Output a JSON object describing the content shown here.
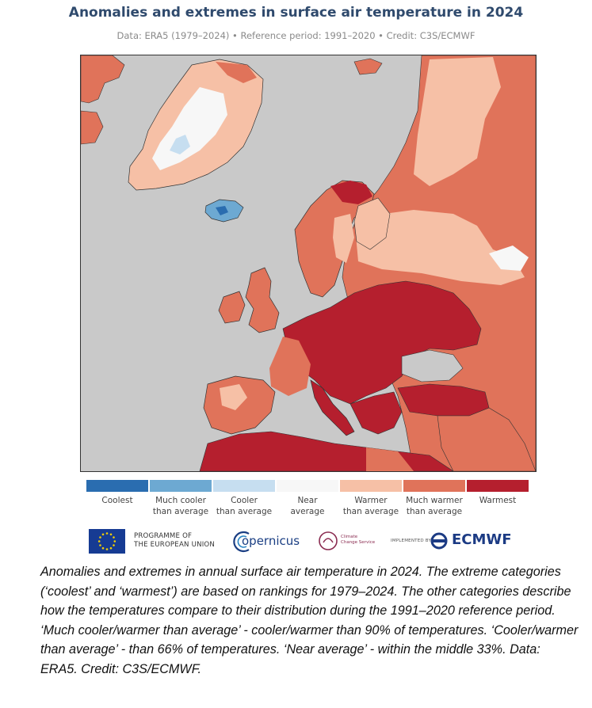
{
  "title": "Anomalies and extremes in surface air temperature in 2024",
  "subtitle": "Data: ERA5 (1979–2024) • Reference period: 1991–2020 • Credit: C3S/ECMWF",
  "legend": [
    {
      "label_1": "Coolest",
      "label_2": "",
      "color": "#2a6db0"
    },
    {
      "label_1": "Much cooler",
      "label_2": "than average",
      "color": "#6da9d2"
    },
    {
      "label_1": "Cooler",
      "label_2": "than average",
      "color": "#c6def0"
    },
    {
      "label_1": "Near",
      "label_2": "average",
      "color": "#f7f7f7"
    },
    {
      "label_1": "Warmer",
      "label_2": "than average",
      "color": "#f6c0a6"
    },
    {
      "label_1": "Much warmer",
      "label_2": "than average",
      "color": "#e0735a"
    },
    {
      "label_1": "Warmest",
      "label_2": "",
      "color": "#b51f2e"
    }
  ],
  "colors": {
    "ocean": "#c9c9c9",
    "coolest": "#2a6db0",
    "much_cooler": "#6da9d2",
    "cooler": "#c6def0",
    "near": "#f7f7f7",
    "warmer": "#f6c0a6",
    "much_warmer": "#e0735a",
    "warmest": "#b51f2e",
    "title": "#2f4a6d"
  },
  "logos": {
    "programme_line1": "PROGRAMME OF",
    "programme_line2": "THE EUROPEAN UNION",
    "copernicus": "opernicus",
    "c3s_line1": "Climate",
    "c3s_line2": "Change Service",
    "implemented_by": "IMPLEMENTED BY",
    "ecmwf": "ECMWF"
  },
  "caption": "Anomalies and extremes in annual surface air temperature in 2024. The extreme categories (‘coolest’ and ‘warmest’) are based on rankings for 1979–2024. The other categories describe how the temperatures compare to their distribution during the 1991–2020 reference period. ‘Much cooler/warmer than average’ - cooler/warmer than 90% of temperatures. ‘Cooler/warmer than average’ - than 66% of temperatures. ‘Near average’ - within the middle 33%. Data: ERA5. Credit: C3S/ECMWF."
}
